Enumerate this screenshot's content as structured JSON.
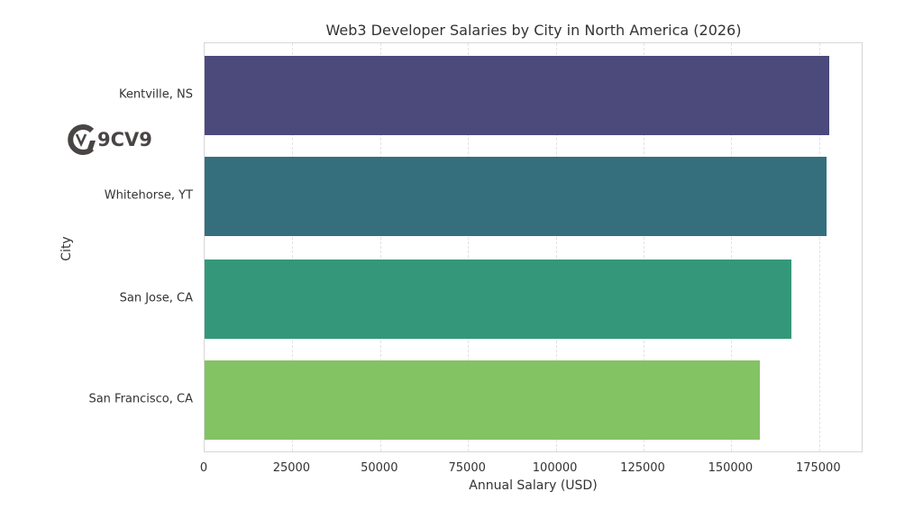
{
  "chart_data": {
    "type": "bar",
    "orientation": "horizontal",
    "title": "Web3 Developer Salaries by City in North America (2026)",
    "xlabel": "Annual Salary (USD)",
    "ylabel": "City",
    "categories": [
      "Kentville, NS",
      "Whitehorse, YT",
      "San Jose, CA",
      "San Francisco, CA"
    ],
    "values": [
      178000,
      177000,
      167000,
      158000
    ],
    "colors": [
      "#4b4a7b",
      "#356f7d",
      "#34977a",
      "#83c363"
    ],
    "xlim": [
      0,
      187500
    ],
    "xticks": [
      0,
      25000,
      50000,
      75000,
      100000,
      125000,
      150000,
      175000
    ],
    "xtick_labels": [
      "0",
      "25000",
      "50000",
      "75000",
      "100000",
      "125000",
      "150000",
      "175000"
    ],
    "grid": "x-dashed",
    "legend": null
  },
  "watermark": {
    "text": "9CV9",
    "icon": "9cv9-logo-icon"
  }
}
